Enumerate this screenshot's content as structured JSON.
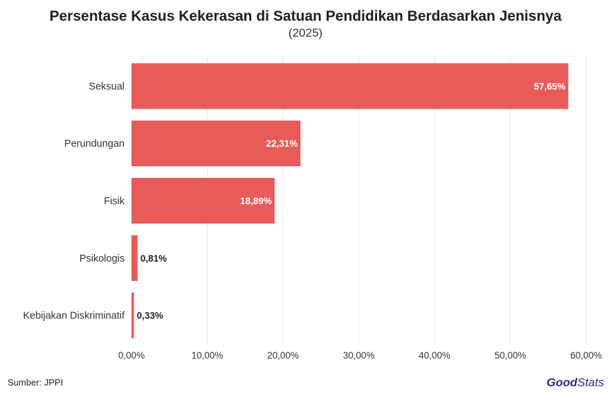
{
  "title": "Persentase Kasus Kekerasan di Satuan Pendidikan Berdasarkan Jenisnya",
  "subtitle": "(2025)",
  "source": "Sumber: JPPI",
  "logo": {
    "part1": "Good",
    "part2": "Stats"
  },
  "colors": {
    "bar": "#e85b59",
    "grid": "#e6e6e6",
    "text": "#333333",
    "logo": "#2e2a8c"
  },
  "chart_data": {
    "type": "bar",
    "orientation": "horizontal",
    "categories": [
      "Seksual",
      "Perundungan",
      "Fisik",
      "Psikologis",
      "Kebijakan Diskriminatif"
    ],
    "values": [
      57.65,
      22.31,
      18.89,
      0.81,
      0.33
    ],
    "value_labels": [
      "57,65%",
      "22,31%",
      "18,89%",
      "0,81%",
      "0,33%"
    ],
    "xlim": [
      0,
      60
    ],
    "xticks": [
      "0,00%",
      "10,00%",
      "20,00%",
      "30,00%",
      "40,00%",
      "50,00%",
      "60,00%"
    ],
    "grid": true,
    "xlabel": "",
    "ylabel": ""
  }
}
